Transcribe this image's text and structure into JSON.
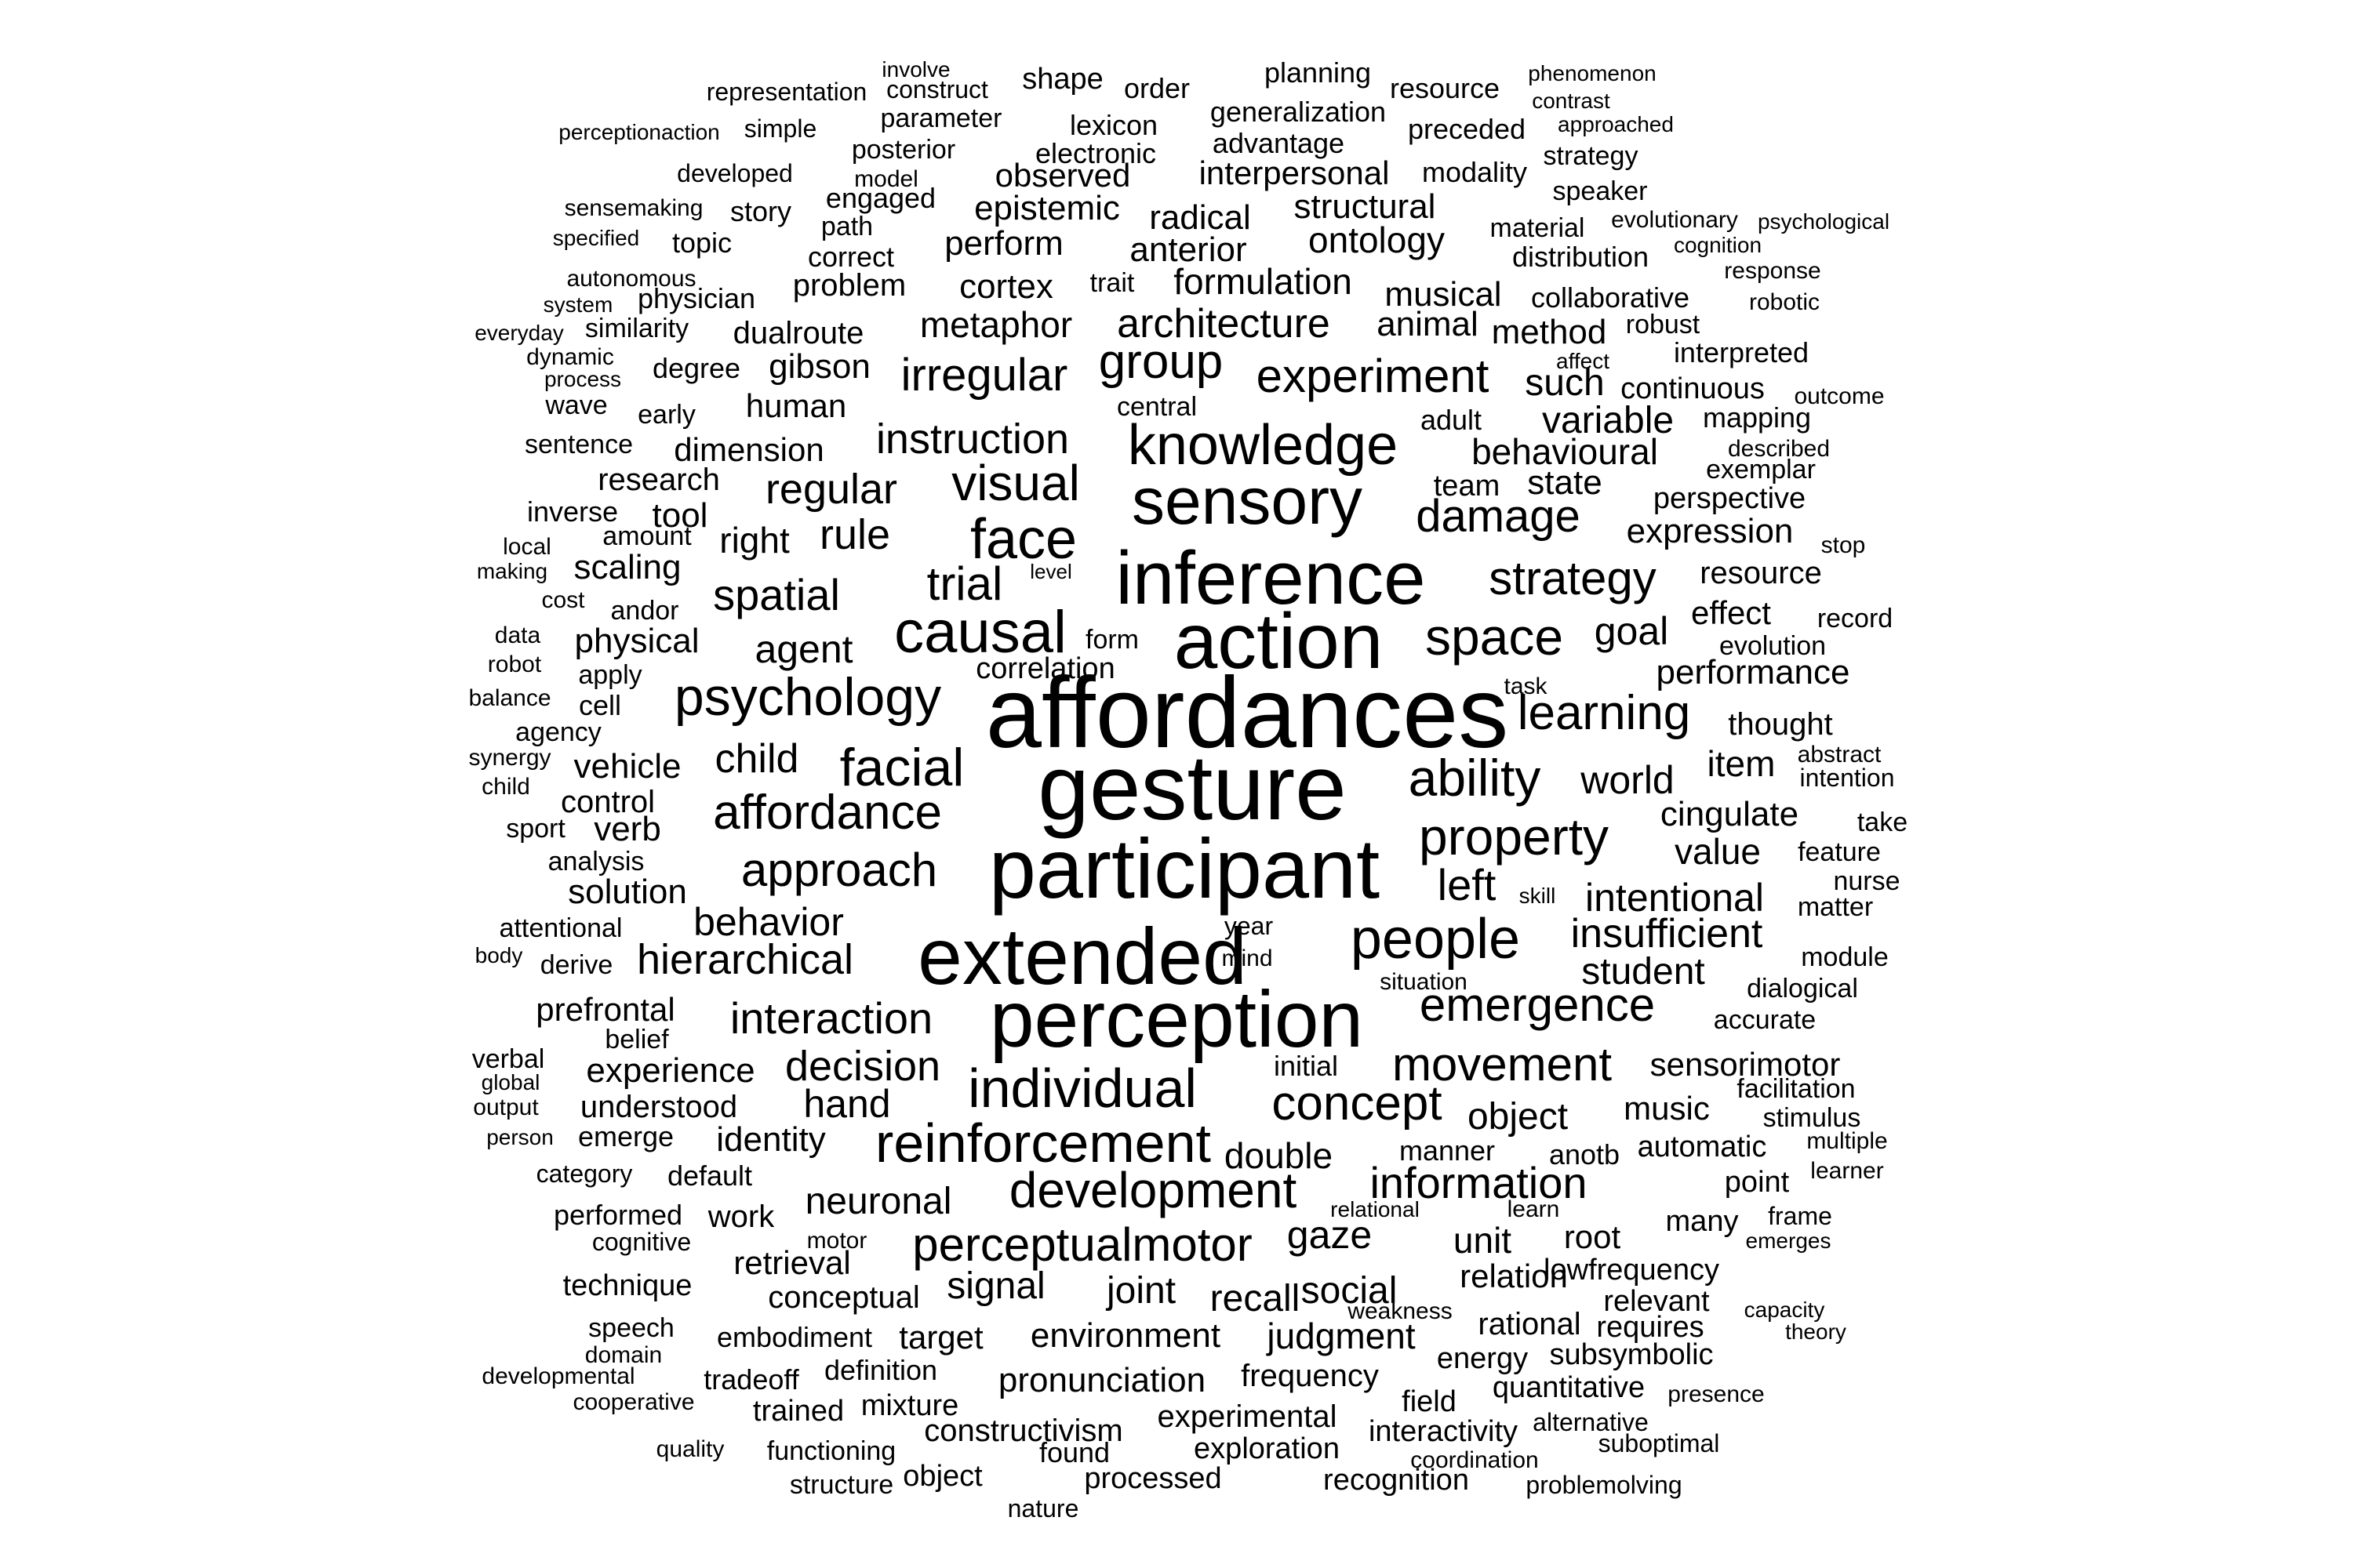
{
  "words": [
    {
      "text": "affordances"
    },
    {
      "text": "gesture"
    },
    {
      "text": "participant"
    },
    {
      "text": "extended"
    },
    {
      "text": "perception"
    },
    {
      "text": "action"
    },
    {
      "text": "inference"
    },
    {
      "text": "sensory"
    },
    {
      "text": "causal"
    },
    {
      "text": "knowledge"
    },
    {
      "text": "face"
    },
    {
      "text": "people"
    },
    {
      "text": "individual"
    },
    {
      "text": "reinforcement"
    },
    {
      "text": "psychology"
    },
    {
      "text": "facial"
    },
    {
      "text": "development"
    },
    {
      "text": "property"
    },
    {
      "text": "perceptualmotor"
    },
    {
      "text": "affordance"
    },
    {
      "text": "emergence"
    },
    {
      "text": "space"
    },
    {
      "text": "ability"
    },
    {
      "text": "learning"
    },
    {
      "text": "strategy"
    },
    {
      "text": "experiment"
    },
    {
      "text": "approach"
    },
    {
      "text": "concept"
    },
    {
      "text": "movement"
    },
    {
      "text": "visual"
    },
    {
      "text": "information"
    },
    {
      "text": "interaction"
    },
    {
      "text": "irregular"
    },
    {
      "text": "architecture"
    },
    {
      "text": "group"
    },
    {
      "text": "damage"
    },
    {
      "text": "instruction"
    },
    {
      "text": "trial"
    },
    {
      "text": "spatial"
    },
    {
      "text": "decision"
    },
    {
      "text": "hierarchical"
    },
    {
      "text": "behavior"
    },
    {
      "text": "insufficient"
    },
    {
      "text": "intentional"
    },
    {
      "text": "regular"
    },
    {
      "text": "child"
    },
    {
      "text": "left"
    },
    {
      "text": "world"
    },
    {
      "text": "agent"
    },
    {
      "text": "student"
    },
    {
      "text": "object"
    },
    {
      "text": "neuronal"
    },
    {
      "text": "environment"
    },
    {
      "text": "judgment"
    },
    {
      "text": "pronunciation"
    },
    {
      "text": "social"
    },
    {
      "text": "gaze"
    },
    {
      "text": "recall"
    },
    {
      "text": "signal"
    },
    {
      "text": "joint"
    },
    {
      "text": "hand"
    },
    {
      "text": "rule"
    },
    {
      "text": "variable"
    },
    {
      "text": "behavioural"
    },
    {
      "text": "expression"
    },
    {
      "text": "goal"
    },
    {
      "text": "performance"
    },
    {
      "text": "cingulate"
    },
    {
      "text": "sensorimotor"
    },
    {
      "text": "experience"
    },
    {
      "text": "metaphor"
    },
    {
      "text": "formulation"
    },
    {
      "text": "ontology"
    },
    {
      "text": "structural"
    },
    {
      "text": "radical"
    },
    {
      "text": "anterior"
    },
    {
      "text": "perform"
    },
    {
      "text": "epistemic"
    },
    {
      "text": "observed"
    },
    {
      "text": "interpersonal"
    },
    {
      "text": "cortex"
    },
    {
      "text": "problem"
    },
    {
      "text": "dualroute"
    },
    {
      "text": "gibson"
    },
    {
      "text": "human"
    },
    {
      "text": "dimension"
    },
    {
      "text": "research"
    },
    {
      "text": "right"
    },
    {
      "text": "scaling"
    },
    {
      "text": "physical"
    },
    {
      "text": "vehicle"
    },
    {
      "text": "control"
    },
    {
      "text": "verb"
    },
    {
      "text": "solution"
    },
    {
      "text": "prefrontal"
    },
    {
      "text": "understood"
    },
    {
      "text": "identity"
    },
    {
      "text": "retrieval"
    },
    {
      "text": "conceptual"
    },
    {
      "text": "target"
    },
    {
      "text": "double"
    },
    {
      "text": "unit"
    },
    {
      "text": "relation"
    },
    {
      "text": "rational"
    },
    {
      "text": "root"
    },
    {
      "text": "music"
    },
    {
      "text": "value"
    },
    {
      "text": "item"
    },
    {
      "text": "thought"
    },
    {
      "text": "effect"
    },
    {
      "text": "resource"
    },
    {
      "text": "state"
    },
    {
      "text": "team"
    },
    {
      "text": "such"
    },
    {
      "text": "animal"
    },
    {
      "text": "method"
    },
    {
      "text": "musical"
    },
    {
      "text": "tool"
    },
    {
      "text": "constructivism"
    },
    {
      "text": "experimental"
    },
    {
      "text": "frequency"
    },
    {
      "text": "exploration"
    },
    {
      "text": "processed"
    },
    {
      "text": "recognition"
    },
    {
      "text": "interactivity"
    },
    {
      "text": "quantitative"
    },
    {
      "text": "subsymbolic"
    },
    {
      "text": "energy"
    },
    {
      "text": "field"
    },
    {
      "text": "lowfrequency"
    },
    {
      "text": "relevant"
    },
    {
      "text": "requires"
    },
    {
      "text": "automatic"
    },
    {
      "text": "point"
    },
    {
      "text": "many"
    },
    {
      "text": "manner"
    },
    {
      "text": "anotb"
    },
    {
      "text": "initial"
    },
    {
      "text": "correlation"
    },
    {
      "text": "form"
    },
    {
      "text": "central"
    },
    {
      "text": "adult"
    },
    {
      "text": "continuous"
    },
    {
      "text": "interpreted"
    },
    {
      "text": "mapping"
    },
    {
      "text": "perspective"
    },
    {
      "text": "exemplar"
    },
    {
      "text": "evolution"
    },
    {
      "text": "record"
    },
    {
      "text": "feature"
    },
    {
      "text": "intention"
    },
    {
      "text": "abstract"
    },
    {
      "text": "take"
    },
    {
      "text": "nurse"
    },
    {
      "text": "matter"
    },
    {
      "text": "module"
    },
    {
      "text": "dialogical"
    },
    {
      "text": "accurate"
    },
    {
      "text": "facilitation"
    },
    {
      "text": "stimulus"
    },
    {
      "text": "multiple"
    },
    {
      "text": "learner"
    },
    {
      "text": "frame"
    },
    {
      "text": "emerges"
    },
    {
      "text": "capacity"
    },
    {
      "text": "theory"
    },
    {
      "text": "presence"
    },
    {
      "text": "alternative"
    },
    {
      "text": "suboptimal"
    },
    {
      "text": "coordination"
    },
    {
      "text": "problemolving"
    },
    {
      "text": "nature"
    },
    {
      "text": "structure"
    },
    {
      "text": "object"
    },
    {
      "text": "functioning"
    },
    {
      "text": "found"
    },
    {
      "text": "quality"
    },
    {
      "text": "trained"
    },
    {
      "text": "mixture"
    },
    {
      "text": "definition"
    },
    {
      "text": "tradeoff"
    },
    {
      "text": "embodiment"
    },
    {
      "text": "cooperative"
    },
    {
      "text": "developmental"
    },
    {
      "text": "domain"
    },
    {
      "text": "speech"
    },
    {
      "text": "technique"
    },
    {
      "text": "cognitive"
    },
    {
      "text": "performed"
    },
    {
      "text": "work"
    },
    {
      "text": "motor"
    },
    {
      "text": "category"
    },
    {
      "text": "default"
    },
    {
      "text": "person"
    },
    {
      "text": "emerge"
    },
    {
      "text": "output"
    },
    {
      "text": "global"
    },
    {
      "text": "verbal"
    },
    {
      "text": "belief"
    },
    {
      "text": "body"
    },
    {
      "text": "derive"
    },
    {
      "text": "attentional"
    },
    {
      "text": "analysis"
    },
    {
      "text": "sport"
    },
    {
      "text": "child"
    },
    {
      "text": "synergy"
    },
    {
      "text": "agency"
    },
    {
      "text": "cell"
    },
    {
      "text": "balance"
    },
    {
      "text": "apply"
    },
    {
      "text": "robot"
    },
    {
      "text": "data"
    },
    {
      "text": "cost"
    },
    {
      "text": "andor"
    },
    {
      "text": "making"
    },
    {
      "text": "local"
    },
    {
      "text": "amount"
    },
    {
      "text": "inverse"
    },
    {
      "text": "sentence"
    },
    {
      "text": "early"
    },
    {
      "text": "wave"
    },
    {
      "text": "process"
    },
    {
      "text": "dynamic"
    },
    {
      "text": "degree"
    },
    {
      "text": "everyday"
    },
    {
      "text": "similarity"
    },
    {
      "text": "system"
    },
    {
      "text": "autonomous"
    },
    {
      "text": "physician"
    },
    {
      "text": "specified"
    },
    {
      "text": "topic"
    },
    {
      "text": "sensemaking"
    },
    {
      "text": "story"
    },
    {
      "text": "developed"
    },
    {
      "text": "perceptionaction"
    },
    {
      "text": "simple"
    },
    {
      "text": "representation"
    },
    {
      "text": "involve"
    },
    {
      "text": "construct"
    },
    {
      "text": "shape"
    },
    {
      "text": "order"
    },
    {
      "text": "planning"
    },
    {
      "text": "resource"
    },
    {
      "text": "phenomenon"
    },
    {
      "text": "contrast"
    },
    {
      "text": "approached"
    },
    {
      "text": "preceded"
    },
    {
      "text": "generalization"
    },
    {
      "text": "lexicon"
    },
    {
      "text": "parameter"
    },
    {
      "text": "posterior"
    },
    {
      "text": "electronic"
    },
    {
      "text": "advantage"
    },
    {
      "text": "strategy"
    },
    {
      "text": "modality"
    },
    {
      "text": "speaker"
    },
    {
      "text": "model"
    },
    {
      "text": "engaged"
    },
    {
      "text": "path"
    },
    {
      "text": "correct"
    },
    {
      "text": "material"
    },
    {
      "text": "evolutionary"
    },
    {
      "text": "psychological"
    },
    {
      "text": "cognition"
    },
    {
      "text": "distribution"
    },
    {
      "text": "response"
    },
    {
      "text": "trait"
    },
    {
      "text": "collaborative"
    },
    {
      "text": "robotic"
    },
    {
      "text": "robust"
    },
    {
      "text": "affect"
    },
    {
      "text": "outcome"
    },
    {
      "text": "described"
    },
    {
      "text": "stop"
    },
    {
      "text": "level"
    },
    {
      "text": "task"
    },
    {
      "text": "skill"
    },
    {
      "text": "year"
    },
    {
      "text": "mind"
    },
    {
      "text": "situation"
    },
    {
      "text": "relational"
    },
    {
      "text": "learn"
    },
    {
      "text": "weakness"
    }
  ]
}
